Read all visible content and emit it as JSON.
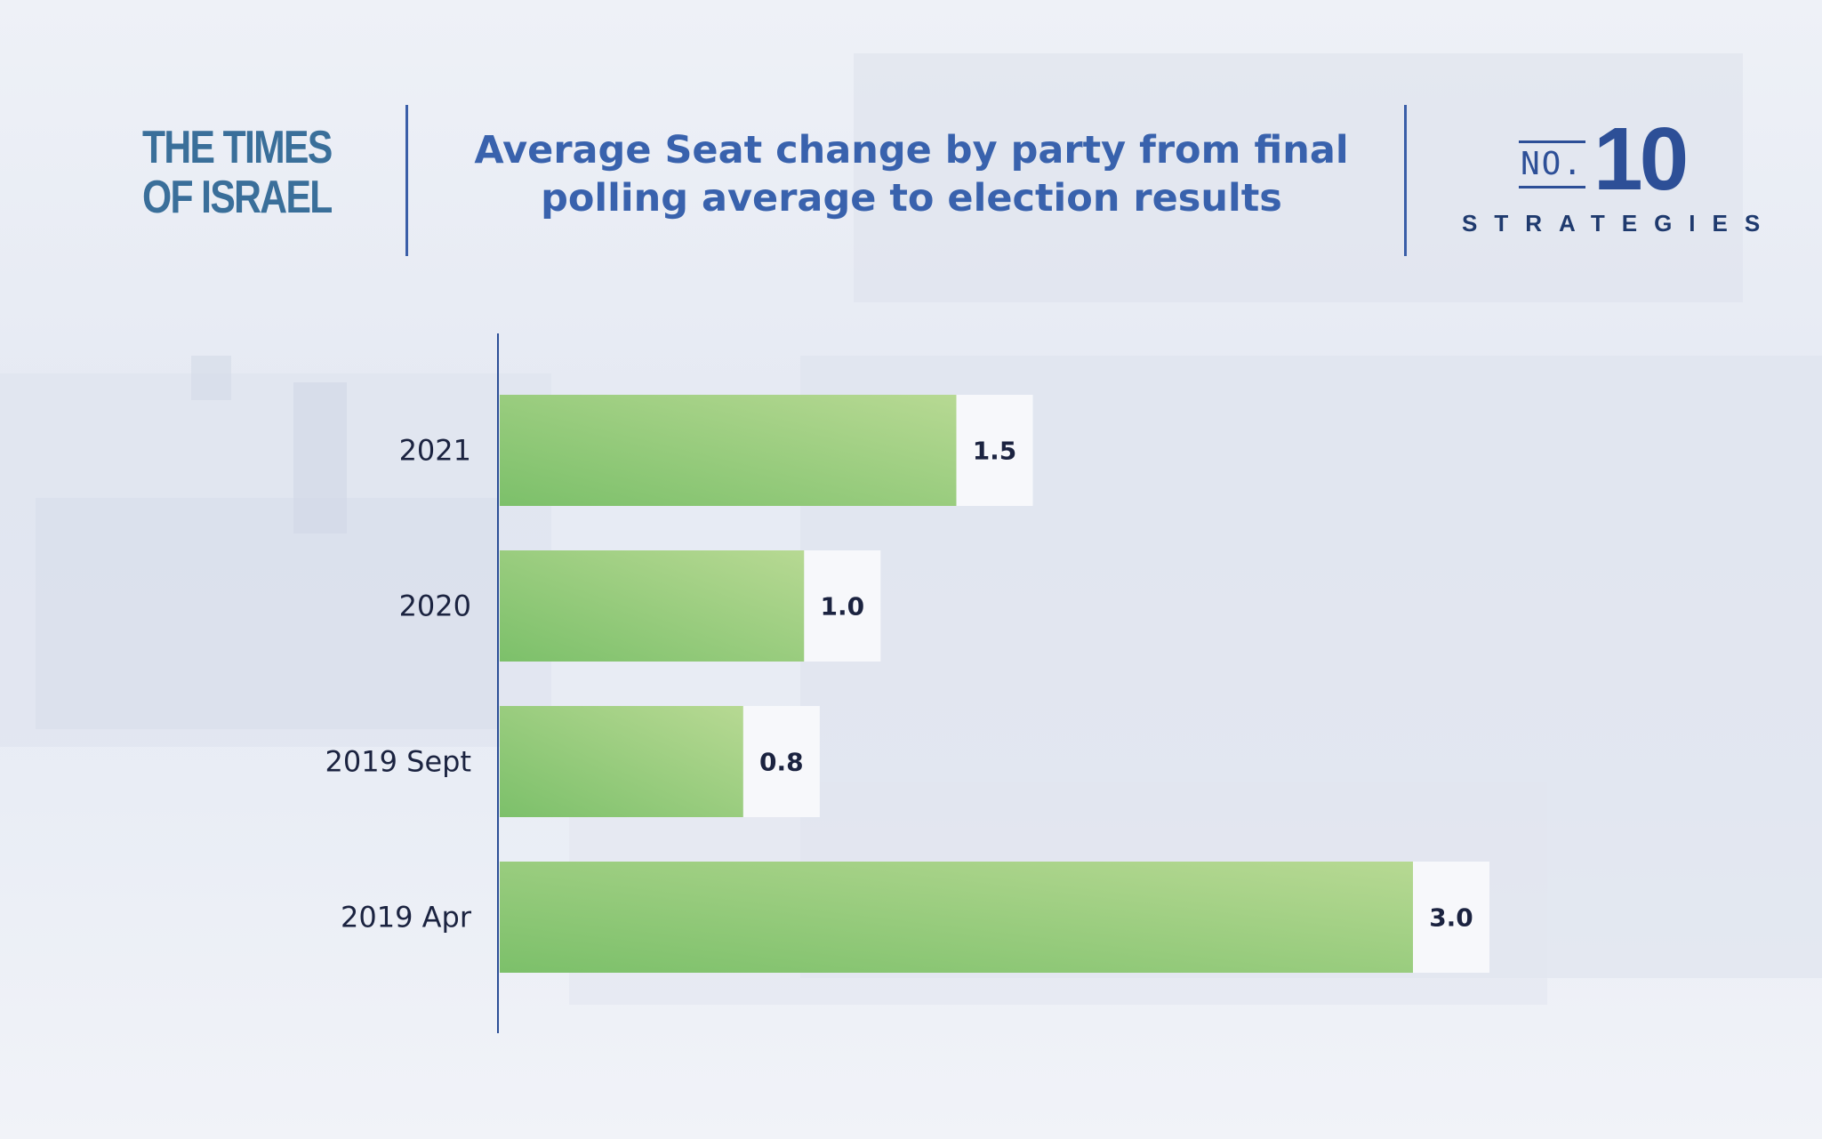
{
  "branding": {
    "publisher_line1": "THE TIMES",
    "publisher_line2": "OF ISRAEL",
    "series_no_label": "NO.",
    "series_number": "10",
    "series_name": "STRATEGIES"
  },
  "colors": {
    "title": "#3962ad",
    "bar_start": "#7cc06a",
    "bar_end": "#b7d993",
    "axis": "#2d4f97",
    "text": "#1b2340"
  },
  "chart_data": {
    "type": "bar",
    "orientation": "horizontal",
    "title": "Average Seat change by party from final polling average to election results",
    "title_line1": "Average Seat change by party from final",
    "title_line2": "polling average to election results",
    "categories": [
      "2021",
      "2020",
      "2019 Sept",
      "2019 Apr"
    ],
    "values": [
      1.5,
      1.0,
      0.8,
      3.0
    ],
    "value_labels": [
      "1.5",
      "1.0",
      "0.8",
      "3.0"
    ],
    "xlim": [
      0,
      3.0
    ],
    "grid": false,
    "legend": "none"
  }
}
